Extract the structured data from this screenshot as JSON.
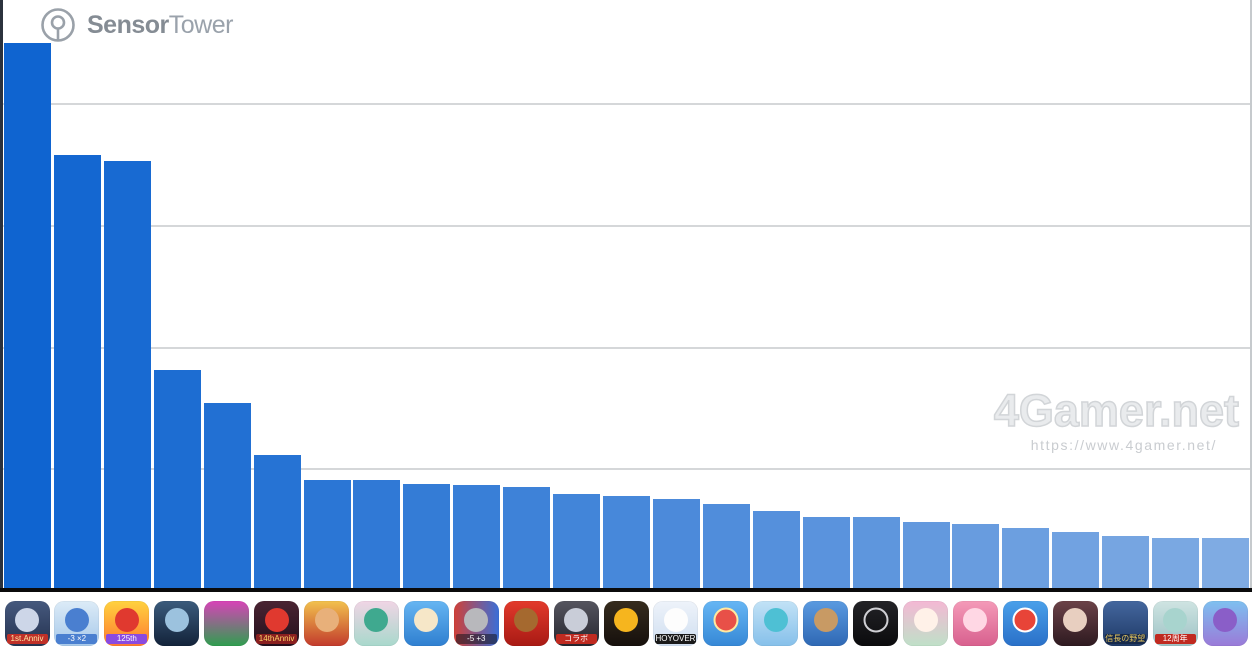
{
  "header": {
    "logo_icon": "sensor-tower-logo",
    "logo_text_bold": "Sensor",
    "logo_text_light": "Tower",
    "logo_color": "#9aa1a9"
  },
  "watermark": {
    "logo_text": "4Gamer.net",
    "url_text": "https://www.4gamer.net/",
    "color": "#e9ebed"
  },
  "chart_data": {
    "type": "bar",
    "title": "",
    "xlabel": "",
    "ylabel": "",
    "axis_labels_visible": false,
    "value_units": "estimated from unlabeled gridlines; 1.0 = one gridline spacing",
    "ylim": [
      0,
      4.85
    ],
    "gridlines": [
      1,
      2,
      3,
      4
    ],
    "grid_on": true,
    "legend": null,
    "bar_color_start": "#0f64d0",
    "bar_color_end": "#7fabe3",
    "categories": [
      "rpg-1st-anniv",
      "runner-minus3-x2",
      "red-mascot-125th",
      "frozen-globe",
      "soccer-pop-art",
      "dragon-14th-anniv",
      "royal-king",
      "bunny-ears-woman",
      "stacked-tsum-faces",
      "soldier-minus5-plus3",
      "brown-bear",
      "collab-anime",
      "yellow-skull-emblem",
      "white-chibi-hoyoverse",
      "pokemon-card",
      "teal-anime-duo",
      "angry-king",
      "black-circular-logotype",
      "pastel-chibi-girl",
      "pink-idol-girl",
      "pokeball-sky",
      "dark-red-anime-girl",
      "nobunaga-gold-kanji",
      "12th-anniv-girl",
      "purple-horse-girl"
    ],
    "values": [
      4.49,
      3.57,
      3.52,
      1.81,
      1.54,
      1.11,
      0.9,
      0.9,
      0.87,
      0.86,
      0.85,
      0.79,
      0.77,
      0.75,
      0.71,
      0.65,
      0.6,
      0.6,
      0.56,
      0.54,
      0.51,
      0.48,
      0.44,
      0.43,
      0.43
    ]
  },
  "icons": [
    {
      "name": "app-icon-1",
      "desc": "dark blue RPG key art with red 1st anniversary ribbon",
      "bg1": "#46597e",
      "bg2": "#253350",
      "accent": "#cdd6e8",
      "text": "1st.Anniv",
      "text_color": "#ffe9a8",
      "text_bg": "#c03028"
    },
    {
      "name": "app-icon-2",
      "desc": "light blue runner puzzle with -3 and x2 gates",
      "bg1": "#dcebf7",
      "bg2": "#a7c9ea",
      "accent": "#4a7fd0",
      "text": "-3 ×2",
      "text_color": "#ffffff",
      "text_bg": "#4a7fd0"
    },
    {
      "name": "app-icon-3",
      "desc": "red mascot with boxing gloves and 125th badge on orange flame",
      "bg1": "#ffd23f",
      "bg2": "#ff7a2f",
      "accent": "#e0392f",
      "text": "125th",
      "text_color": "#ffffff",
      "text_bg": "#8a4ae0"
    },
    {
      "name": "app-icon-4",
      "desc": "frozen earth globe on dark navy",
      "bg1": "#3b5b7c",
      "bg2": "#13233a",
      "accent": "#9cc2de",
      "text": ""
    },
    {
      "name": "app-icon-5",
      "desc": "colorful pop-art soccer players",
      "bg1": "#d843b8",
      "bg2": "#2f9e4f",
      "accent": null,
      "text": ""
    },
    {
      "name": "app-icon-6",
      "desc": "red dragon with 14th anniversary banner on dark ground",
      "bg1": "#4a2433",
      "bg2": "#24101c",
      "accent": "#e0392f",
      "text": "14thAnniv",
      "text_color": "#ffd76a",
      "text_bg": "#8a1f1f"
    },
    {
      "name": "app-icon-7",
      "desc": "king with gold crown and red robe on golden background",
      "bg1": "#f2c14e",
      "bg2": "#c23a2c",
      "accent": "#e8b07a",
      "text": ""
    },
    {
      "name": "app-icon-8",
      "desc": "green-haired woman with bunny ears in pastel garden",
      "bg1": "#f0d5e5",
      "bg2": "#a8d8cc",
      "accent": "#3fa98f",
      "text": ""
    },
    {
      "name": "app-icon-9",
      "desc": "stacked round cartoon faces on blue",
      "bg1": "#66b5f2",
      "bg2": "#2f7fd0",
      "accent": "#f6e7c8",
      "text": ""
    },
    {
      "name": "app-icon-10",
      "desc": "soldier between red -5 and blue +3 gates",
      "bg1": "#d04038",
      "bg2": "#3a6fd8",
      "dir": "90deg",
      "accent": "#b8b8bc",
      "text": "-5 +3",
      "text_color": "#ffffff",
      "text_bg": "rgba(20,20,30,0.55)"
    },
    {
      "name": "app-icon-11",
      "desc": "brown bear on red background",
      "bg1": "#e23a2c",
      "bg2": "#a81a14",
      "accent": "#a5692f",
      "text": ""
    },
    {
      "name": "app-icon-12",
      "desc": "dark anime art with red collab banner",
      "bg1": "#55555f",
      "bg2": "#26262e",
      "accent": "#c9cdd8",
      "text": "コラボ",
      "text_color": "#ffffff",
      "text_bg": "#c02a20"
    },
    {
      "name": "app-icon-13",
      "desc": "yellow skull emblem on black",
      "bg1": "#362c1e",
      "bg2": "#16100c",
      "accent": "#f6b51e",
      "text": ""
    },
    {
      "name": "app-icon-14",
      "desc": "white-haired chibi girl winking with HOYOVERSE band",
      "bg1": "#eef3fa",
      "bg2": "#cfdef0",
      "accent": "#fdfdfd",
      "text": "HOYOVERSE",
      "text_color": "#ffffff",
      "text_bg": "#1a1a1a"
    },
    {
      "name": "app-icon-15",
      "desc": "trading card with pokeball on blue",
      "bg1": "#66b6f4",
      "bg2": "#3688d6",
      "accent": "#e85048",
      "ring": "#ffe9a0",
      "text": ""
    },
    {
      "name": "app-icon-16",
      "desc": "teal-haired anime characters on light blue",
      "bg1": "#c2e2f6",
      "bg2": "#86c0ea",
      "accent": "#4ec0d4",
      "text": ""
    },
    {
      "name": "app-icon-17",
      "desc": "angry bearded king with gold crown on blue",
      "bg1": "#5a9ae0",
      "bg2": "#2f68b4",
      "accent": "#c89a64",
      "text": ""
    },
    {
      "name": "app-icon-18",
      "desc": "black icon with circular white logotype",
      "bg1": "#232327",
      "bg2": "#0b0b0d",
      "accent": "",
      "ring": "#cfcfd4",
      "text": ""
    },
    {
      "name": "app-icon-19",
      "desc": "pink-haired chibi girl with white puppies in pastel",
      "bg1": "#f4b8d4",
      "bg2": "#bfe0c8",
      "accent": "#fff1e8",
      "text": ""
    },
    {
      "name": "app-icon-20",
      "desc": "pink-haired idol anime girl",
      "bg1": "#f49ab8",
      "bg2": "#d8608e",
      "accent": "#ffd7e4",
      "text": ""
    },
    {
      "name": "app-icon-21",
      "desc": "red and white pokeball on blue sky",
      "bg1": "#4aa0ea",
      "bg2": "#2a70c8",
      "accent": "#e84438",
      "ring": "#ffffff",
      "text": ""
    },
    {
      "name": "app-icon-22",
      "desc": "light-haired anime girl in dark red outfit",
      "bg1": "#6b4248",
      "bg2": "#2e1a20",
      "accent": "#e8cfc0",
      "text": ""
    },
    {
      "name": "app-icon-23",
      "desc": "gold kanji title with red sortie seal on stormy blue",
      "bg1": "#44679e",
      "bg2": "#1f3a66",
      "accent": null,
      "text": "信長の野望",
      "text_color": "#e8c860",
      "text_bg": "#16294a"
    },
    {
      "name": "app-icon-24",
      "desc": "teal-haired girl with red 12th anniversary corner ribbon",
      "bg1": "#cfe4e2",
      "bg2": "#9cc2c4",
      "accent": "#a8d4ce",
      "text": "12周年",
      "text_color": "#ffffff",
      "text_bg": "#c02a20"
    },
    {
      "name": "app-icon-25",
      "desc": "purple-haired horse-eared girl on sky blue",
      "bg1": "#7ec0f0",
      "bg2": "#9a7ad8",
      "accent": "#8a5ec8",
      "text": ""
    }
  ]
}
